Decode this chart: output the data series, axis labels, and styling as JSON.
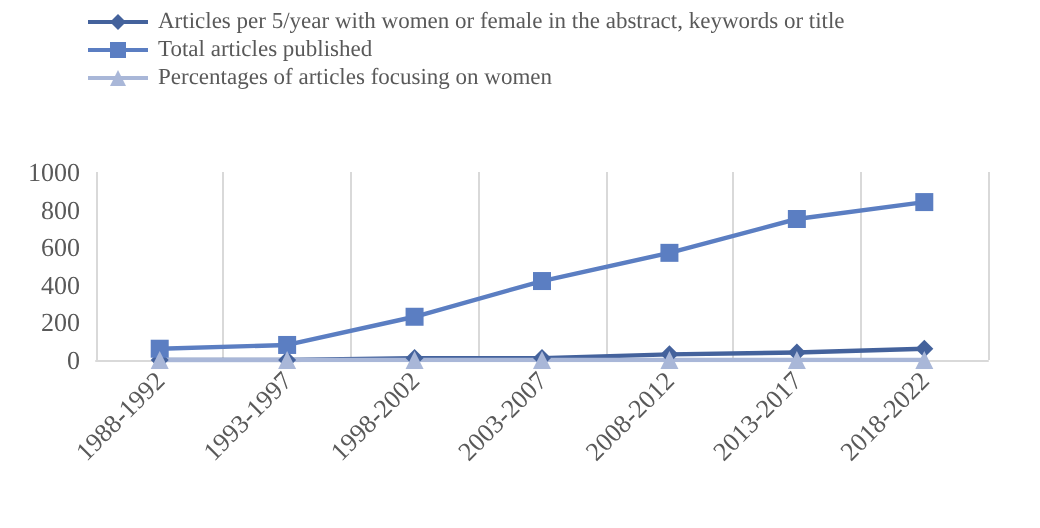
{
  "chart_data": {
    "type": "line",
    "categories": [
      "1988-1992",
      "1993-1997",
      "1998-2002",
      "2003-2007",
      "2008-2012",
      "2013-2017",
      "2018-2022"
    ],
    "series": [
      {
        "name": "Articles per 5/year with women or female in the abstract, keywords or title",
        "color": "#44629c",
        "marker": "diamond",
        "values": [
          0,
          0,
          10,
          10,
          30,
          40,
          60
        ]
      },
      {
        "name": "Total articles published",
        "color": "#5b7ec2",
        "marker": "square",
        "values": [
          60,
          80,
          230,
          420,
          570,
          750,
          840
        ]
      },
      {
        "name": "Percentages of articles focusing on women",
        "color": "#a9b7d8",
        "marker": "triangle",
        "values": [
          0,
          0,
          0,
          0,
          0,
          0,
          0
        ]
      }
    ],
    "ylim": [
      0,
      1000
    ],
    "yticks": [
      0,
      200,
      400,
      600,
      800,
      1000
    ],
    "grid": "x",
    "legend": "top left"
  }
}
